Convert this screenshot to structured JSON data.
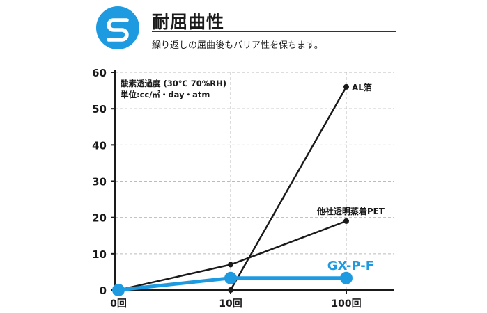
{
  "header": {
    "logo_letter": "S",
    "title": "耐屈曲性",
    "subtitle": "繰り返しの屈曲後もバリア性を保ちます。"
  },
  "colors": {
    "accent": "#1e9be0",
    "line": "#1a1a1a",
    "grid": "#bbbbbb"
  },
  "chart_data": {
    "type": "line",
    "title": "",
    "annotation": [
      "酸素透過度 (30℃ 70%RH)",
      "単位:cc/㎡・day・atm"
    ],
    "categories": [
      "0回",
      "10回",
      "100回"
    ],
    "ylim": [
      0,
      60
    ],
    "yticks": [
      0,
      10,
      20,
      30,
      40,
      50,
      60
    ],
    "grid": true,
    "series": [
      {
        "name": "AL箔",
        "values": [
          0,
          0,
          56
        ],
        "color": "#1a1a1a"
      },
      {
        "name": "他社透明蒸着PET",
        "values": [
          0,
          7,
          19
        ],
        "color": "#1a1a1a"
      },
      {
        "name": "GX-P-F",
        "values": [
          0,
          3.3,
          3.3
        ],
        "color": "#1e9be0"
      }
    ]
  }
}
